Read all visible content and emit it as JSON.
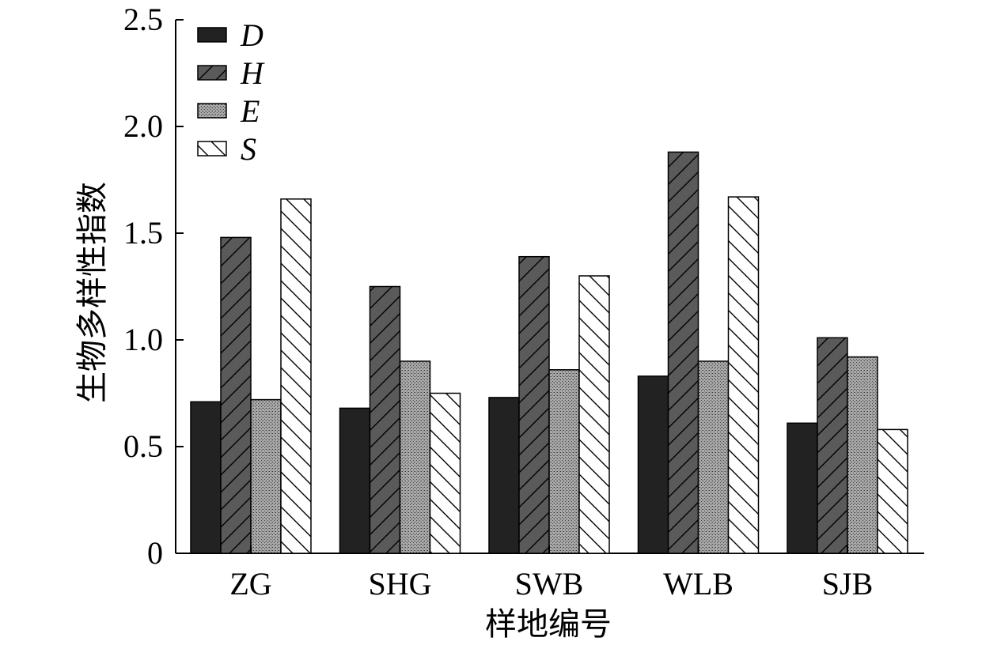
{
  "chart_data": {
    "type": "bar",
    "ylabel": "生物多样性指数",
    "xlabel": "样地编号",
    "ylim": [
      0,
      2.5
    ],
    "yticks": [
      "0",
      "0.5",
      "1.0",
      "1.5",
      "2.0",
      "2.5"
    ],
    "ytick_values": [
      0,
      0.5,
      1.0,
      1.5,
      2.0,
      2.5
    ],
    "categories": [
      "ZG",
      "SHG",
      "SWB",
      "WLB",
      "SJB"
    ],
    "series": [
      {
        "name": "D",
        "values": [
          0.71,
          0.68,
          0.73,
          0.83,
          0.61
        ],
        "color": "#222222",
        "pattern": "solid"
      },
      {
        "name": "H",
        "values": [
          1.48,
          1.25,
          1.39,
          1.88,
          1.01
        ],
        "color": "#5a5a5a",
        "pattern": "forward-hatch"
      },
      {
        "name": "E",
        "values": [
          0.72,
          0.9,
          0.86,
          0.9,
          0.92
        ],
        "color": "#9a9a9a",
        "pattern": "stipple"
      },
      {
        "name": "S",
        "values": [
          1.66,
          0.75,
          1.3,
          1.67,
          0.58
        ],
        "color": "#ffffff",
        "pattern": "back-hatch"
      }
    ],
    "legend_position": "top-left",
    "grid": false
  }
}
